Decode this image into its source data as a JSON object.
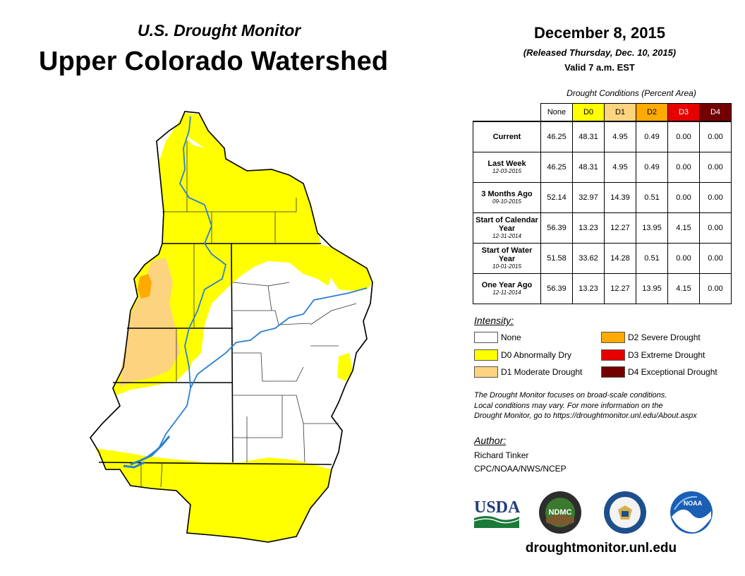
{
  "header": {
    "subtitle": "U.S. Drought Monitor",
    "title": "Upper Colorado Watershed",
    "date": "December 8, 2015",
    "released": "(Released Thursday, Dec. 10, 2015)",
    "valid": "Valid 7 a.m. EST"
  },
  "table": {
    "title": "Drought Conditions (Percent Area)",
    "columns": [
      "None",
      "D0",
      "D1",
      "D2",
      "D3",
      "D4"
    ],
    "column_colors": [
      "#ffffff",
      "#ffff00",
      "#fcd37f",
      "#ffaa00",
      "#e60000",
      "#730000"
    ],
    "column_text_colors": [
      "#000000",
      "#000000",
      "#000000",
      "#000000",
      "#ffffff",
      "#ffffff"
    ],
    "rows": [
      {
        "label": "Current",
        "sub": "",
        "values": [
          "46.25",
          "48.31",
          "4.95",
          "0.49",
          "0.00",
          "0.00"
        ]
      },
      {
        "label": "Last Week",
        "sub": "12-03-2015",
        "values": [
          "46.25",
          "48.31",
          "4.95",
          "0.49",
          "0.00",
          "0.00"
        ]
      },
      {
        "label": "3 Months Ago",
        "sub": "09-10-2015",
        "values": [
          "52.14",
          "32.97",
          "14.39",
          "0.51",
          "0.00",
          "0.00"
        ]
      },
      {
        "label": "Start of Calendar Year",
        "sub": "12-31-2014",
        "values": [
          "56.39",
          "13.23",
          "12.27",
          "13.95",
          "4.15",
          "0.00"
        ]
      },
      {
        "label": "Start of Water Year",
        "sub": "10-01-2015",
        "values": [
          "51.58",
          "33.62",
          "14.28",
          "0.51",
          "0.00",
          "0.00"
        ]
      },
      {
        "label": "One Year Ago",
        "sub": "12-11-2014",
        "values": [
          "56.39",
          "13.23",
          "12.27",
          "13.95",
          "4.15",
          "0.00"
        ]
      }
    ]
  },
  "legend": {
    "title": "Intensity:",
    "items": [
      {
        "label": "None",
        "color": "#ffffff"
      },
      {
        "label": "D0 Abnormally Dry",
        "color": "#ffff00"
      },
      {
        "label": "D1 Moderate Drought",
        "color": "#fcd37f"
      },
      {
        "label": "D2 Severe Drought",
        "color": "#ffaa00"
      },
      {
        "label": "D3 Extreme Drought",
        "color": "#e60000"
      },
      {
        "label": "D4 Exceptional Drought",
        "color": "#730000"
      }
    ]
  },
  "note": {
    "line1": "The Drought Monitor focuses on broad-scale conditions.",
    "line2": "Local conditions may vary. For more information on the",
    "line3": "Drought Monitor, go to https://droughtmonitor.unl.edu/About.aspx"
  },
  "author": {
    "title": "Author:",
    "name": "Richard Tinker",
    "org": "CPC/NOAA/NWS/NCEP"
  },
  "logos": {
    "usda": "USDA",
    "ndmc": "NDMC",
    "noaa": "NOAA"
  },
  "website": "droughtmonitor.unl.edu",
  "map": {
    "river_color": "#2a7fd4",
    "boundary_color": "#000000"
  }
}
